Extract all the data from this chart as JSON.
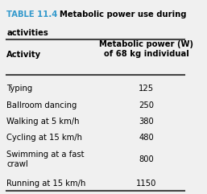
{
  "title_prefix": "TABLE 11.4",
  "title_rest": "Metabolic power use during",
  "title_line2": "activities",
  "col1_header": "Activity",
  "col2_header": "Metabolic power (W)\nof 68 kg individual",
  "rows": [
    [
      "Typing",
      "125"
    ],
    [
      "Ballroom dancing",
      "250"
    ],
    [
      "Walking at 5 km/h",
      "380"
    ],
    [
      "Cycling at 15 km/h",
      "480"
    ],
    [
      "Swimming at a fast\ncrawl",
      "800"
    ],
    [
      "Running at 15 km/h",
      "1150"
    ]
  ],
  "title_color": "#3399cc",
  "header_color": "#000000",
  "body_color": "#000000",
  "bg_color": "#f0f0f0",
  "line_color": "#444444",
  "title_fontsize": 7.2,
  "header_fontsize": 7.2,
  "body_fontsize": 7.2,
  "fig_width": 2.57,
  "fig_height": 2.41
}
